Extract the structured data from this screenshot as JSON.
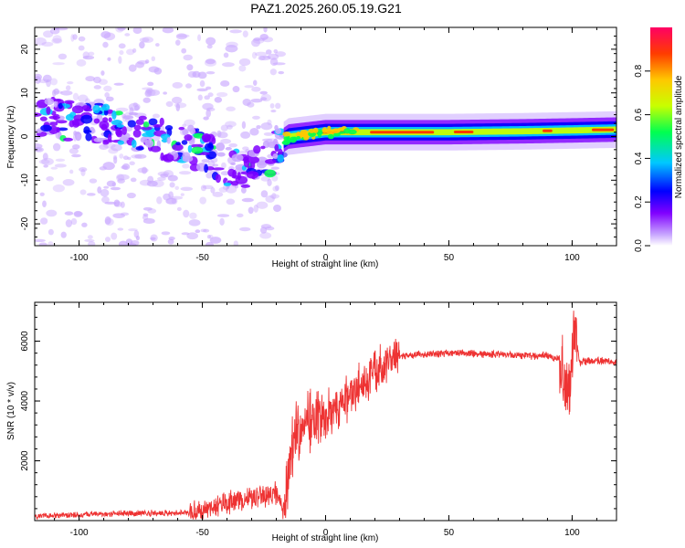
{
  "title": "PAZ1.2025.260.05.19.G21",
  "chart_data": [
    {
      "type": "heatmap",
      "xlabel": "Height of straight line (km)",
      "ylabel": "Frequency (Hz)",
      "xlim": [
        -118,
        118
      ],
      "ylim": [
        -25,
        25
      ],
      "xticks": [
        -100,
        -50,
        0,
        50,
        100
      ],
      "yticks": [
        -20,
        -10,
        0,
        10,
        20
      ],
      "grid": false,
      "colorbar": {
        "label": "Normalized spectral amplitude",
        "range": [
          0,
          1
        ],
        "ticks": [
          0.0,
          0.2,
          0.4,
          0.6,
          0.8
        ],
        "colors": [
          "#ffffff",
          "#c9a8ff",
          "#8000ff",
          "#0000ff",
          "#00c8ff",
          "#00ff50",
          "#c8ff00",
          "#ffc800",
          "#ff3c00",
          "#ff0064"
        ]
      },
      "ridge": {
        "description_points_x": [
          -115,
          -100,
          -80,
          -70,
          -55,
          -45,
          -35,
          -25,
          -20,
          -15,
          0,
          20,
          50,
          80,
          100,
          118
        ],
        "description_points_y": [
          4.5,
          3.5,
          2.5,
          0,
          -2,
          -5,
          -8,
          -6,
          -2,
          0,
          1,
          1,
          1,
          1.2,
          1.4,
          1.6
        ]
      }
    },
    {
      "type": "line",
      "xlabel": "Height of straight line (km)",
      "ylabel": "SNR (10 * v/v)",
      "xlim": [
        -118,
        118
      ],
      "ylim": [
        0,
        7300
      ],
      "xticks": [
        -100,
        -50,
        0,
        50,
        100
      ],
      "yticks": [
        2000,
        4000,
        6000
      ],
      "color": "#ee3333",
      "grid": false,
      "profile_x": [
        -118,
        -100,
        -80,
        -60,
        -50,
        -40,
        -30,
        -20,
        -17,
        -13,
        -10,
        -5,
        0,
        5,
        10,
        15,
        20,
        25,
        30,
        35,
        50,
        70,
        90,
        95,
        99,
        101,
        103,
        110,
        118
      ],
      "profile_y": [
        150,
        200,
        250,
        250,
        300,
        600,
        800,
        900,
        300,
        2800,
        3200,
        3400,
        3600,
        3800,
        4200,
        4600,
        5000,
        5400,
        5500,
        5550,
        5600,
        5550,
        5500,
        5400,
        4500,
        6500,
        5300,
        5350,
        5300
      ]
    }
  ]
}
